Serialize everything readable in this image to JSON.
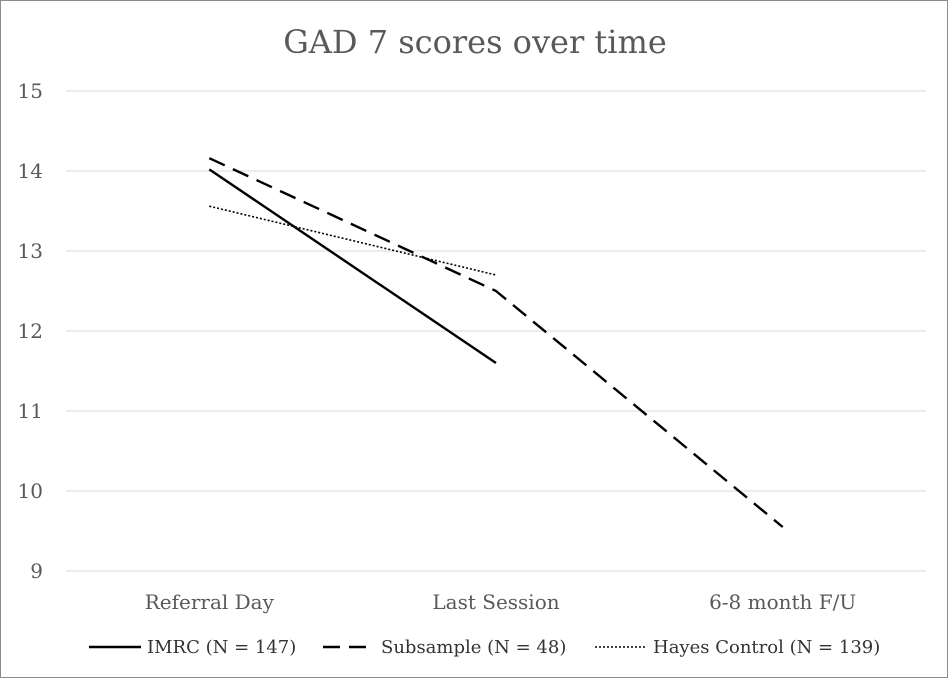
{
  "chart_data": {
    "type": "line",
    "title": "GAD 7  scores over time",
    "categories": [
      "Referral Day",
      "Last Session",
      "6-8 month F/U"
    ],
    "ylim": [
      9,
      15
    ],
    "yticks": [
      9,
      10,
      11,
      12,
      13,
      14,
      15
    ],
    "grid": true,
    "legend_position": "bottom",
    "series": [
      {
        "name": "IMRC (N = 147)",
        "values": [
          14.02,
          11.6,
          null
        ],
        "dash": "solid",
        "color": "#000000"
      },
      {
        "name": "Subsample (N = 48)",
        "values": [
          14.16,
          12.5,
          9.55
        ],
        "dash": "dashed",
        "color": "#000000"
      },
      {
        "name": "Hayes Control (N = 139)",
        "values": [
          13.56,
          12.7,
          null
        ],
        "dash": "dotted",
        "color": "#000000"
      }
    ]
  }
}
